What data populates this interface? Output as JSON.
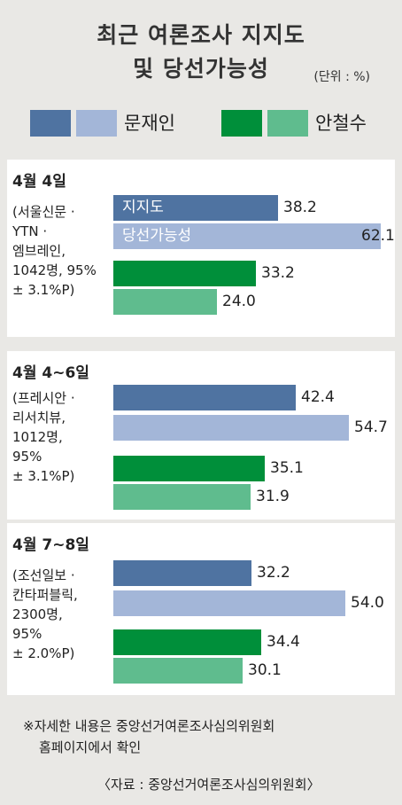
{
  "title_line1": "최근 여론조사 지지도",
  "title_line2": "및 당선가능성",
  "unit": "(단위 : %)",
  "legend": [
    {
      "name": "문재인",
      "colors": [
        "#4f73a1",
        "#a3b6d8"
      ]
    },
    {
      "name": "안철수",
      "colors": [
        "#008f3a",
        "#5fbc8e"
      ]
    }
  ],
  "colors": {
    "moon_support": "#4f73a1",
    "moon_win": "#a3b6d8",
    "ahn_support": "#008f3a",
    "ahn_win": "#5fbc8e",
    "panel": "#ffffff",
    "background": "#e9e8e5"
  },
  "bar_labels": {
    "support": "지지도",
    "win": "당선가능성"
  },
  "chart_data": {
    "type": "bar",
    "orientation": "horizontal",
    "title": "최근 여론조사 지지도 및 당선가능성",
    "unit": "%",
    "xlim": [
      0,
      65
    ],
    "grid": false,
    "series_order": [
      "문재인 지지도",
      "문재인 당선가능성",
      "안철수 지지도",
      "안철수 당선가능성"
    ],
    "groups": [
      {
        "date": "4월 4일",
        "source_lines": [
          "(서울신문 ·",
          "YTN ·",
          "엠브레인,",
          "1042명, 95%",
          "± 3.1%P)"
        ],
        "values": [
          38.2,
          62.1,
          33.2,
          24.0
        ],
        "labels": [
          "38.2",
          "62.1",
          "33.2",
          "24.0"
        ]
      },
      {
        "date": "4월 4~6일",
        "source_lines": [
          "(프레시안 ·",
          "리서치뷰,",
          "1012명,",
          "95%",
          "± 3.1%P)"
        ],
        "values": [
          42.4,
          54.7,
          35.1,
          31.9
        ],
        "labels": [
          "42.4",
          "54.7",
          "35.1",
          "31.9"
        ]
      },
      {
        "date": "4월 7~8일",
        "source_lines": [
          "(조선일보 ·",
          "칸타퍼블릭,",
          "2300명,",
          "95%",
          "± 2.0%P)"
        ],
        "values": [
          32.2,
          54.0,
          34.4,
          30.1
        ],
        "labels": [
          "32.2",
          "54.0",
          "34.4",
          "30.1"
        ]
      }
    ]
  },
  "footnote_line1": "※자세한 내용은 중앙선거여론조사심의위원회",
  "footnote_line2": "홈페이지에서 확인",
  "source": "〈자료 : 중앙선거여론조사심의위원회〉"
}
